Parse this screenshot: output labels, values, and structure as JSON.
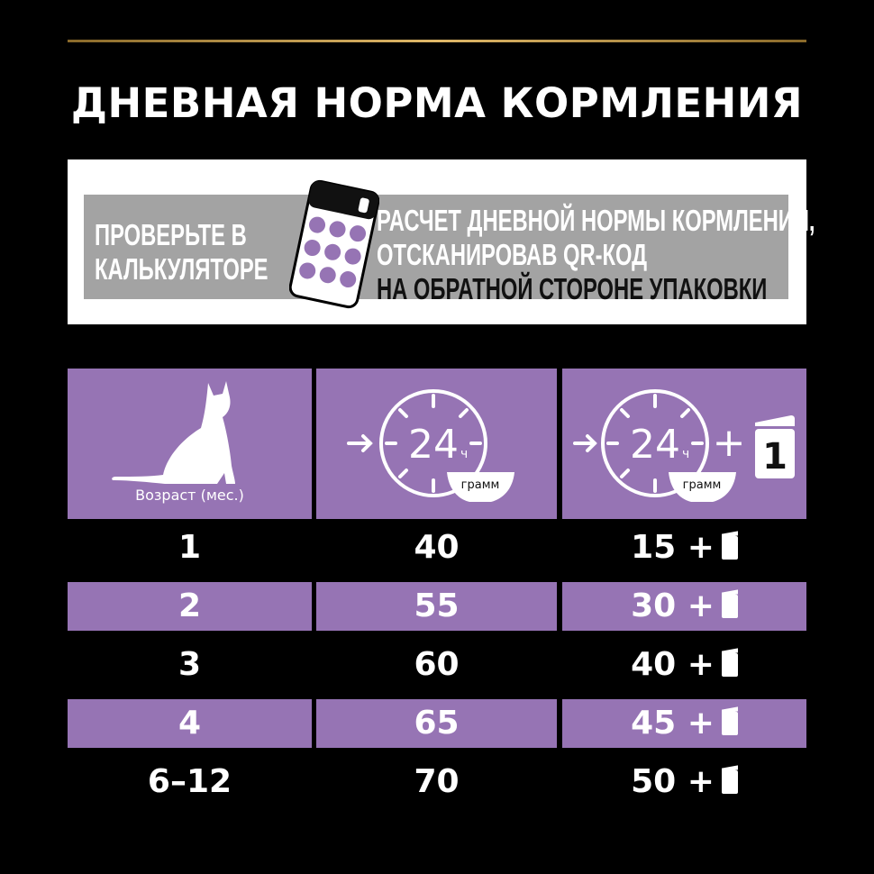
{
  "title": "ДНЕВНАЯ НОРМА КОРМЛЕНИЯ",
  "banner": {
    "left_lines": [
      "ПРОВЕРЬТЕ В",
      "КАЛЬКУЛЯТОРЕ"
    ],
    "right_lines": [
      "РАСЧЕТ ДНЕВНОЙ НОРМЫ КОРМЛЕНИЯ,",
      "ОТСКАНИРОВАВ QR-КОД",
      "НА ОБРАТНОЙ СТОРОНЕ УПАКОВКИ"
    ]
  },
  "header": {
    "age_label": "Возраст (мес.)",
    "clock_hours": "24",
    "clock_unit": "ч",
    "bowl_label": "грамм",
    "plus": "+",
    "pouch_count": "1"
  },
  "colors": {
    "purple": "#9674b4",
    "gray": "#a3a3a3",
    "gold": "#d4a857"
  },
  "rows": [
    {
      "age": "1",
      "dry": "40",
      "mixed": "15 +"
    },
    {
      "age": "2",
      "dry": "55",
      "mixed": "30 +"
    },
    {
      "age": "3",
      "dry": "60",
      "mixed": "40 +"
    },
    {
      "age": "4",
      "dry": "65",
      "mixed": "45 +"
    },
    {
      "age": "6–12",
      "dry": "70",
      "mixed": "50 +"
    }
  ]
}
